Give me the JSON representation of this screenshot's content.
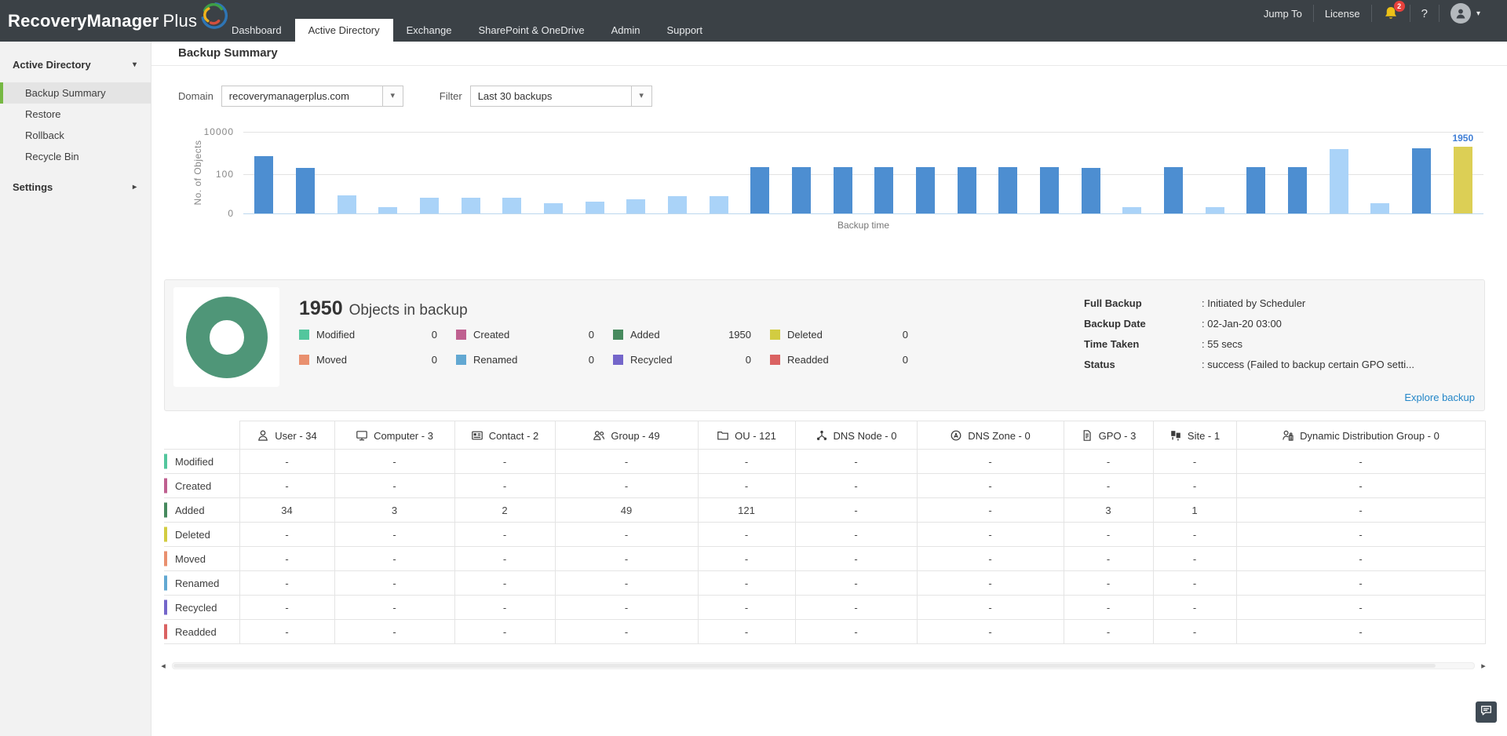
{
  "topbar": {
    "logo": {
      "text_primary": "RecoveryManager",
      "text_secondary": "Plus"
    },
    "tabs": [
      {
        "label": "Dashboard",
        "active": false
      },
      {
        "label": "Active Directory",
        "active": true
      },
      {
        "label": "Exchange",
        "active": false
      },
      {
        "label": "SharePoint & OneDrive",
        "active": false
      },
      {
        "label": "Admin",
        "active": false
      },
      {
        "label": "Support",
        "active": false
      }
    ],
    "right": {
      "jump_to": "Jump To",
      "license": "License",
      "notification_count": "2",
      "help": "?"
    }
  },
  "sidebar": {
    "section": {
      "label": "Active Directory"
    },
    "items": [
      {
        "label": "Backup Summary",
        "selected": true
      },
      {
        "label": "Restore",
        "selected": false
      },
      {
        "label": "Rollback",
        "selected": false
      },
      {
        "label": "Recycle Bin",
        "selected": false
      }
    ],
    "settings_label": "Settings"
  },
  "page": {
    "title": "Backup Summary"
  },
  "filters": {
    "domain_label": "Domain",
    "domain_value": "recoverymanagerplus.com",
    "filter_label": "Filter",
    "filter_value": "Last 30 backups"
  },
  "icons": {
    "caret_down": "▾",
    "caret_right": "▸",
    "select_caret": "▾",
    "scroll_left": "◂",
    "scroll_right": "▸",
    "avatar_caret": "▾"
  },
  "chart_data": {
    "type": "bar",
    "title": "",
    "xlabel": "Backup time",
    "ylabel": "No. of Objects",
    "yticks": [
      "10000",
      "100",
      "0"
    ],
    "scale": "linear 0-100 below first gridline, then logarithmic to 10000",
    "legend_position": "none",
    "grid": true,
    "colors": {
      "dark": "#4d8ed1",
      "light": "#aad3f8",
      "yellow": "#dccf55"
    },
    "bars": [
      {
        "v": 700,
        "c": "dark"
      },
      {
        "v": 200,
        "c": "dark"
      },
      {
        "v": 45,
        "c": "light"
      },
      {
        "v": 15,
        "c": "light"
      },
      {
        "v": 40,
        "c": "light"
      },
      {
        "v": 40,
        "c": "light"
      },
      {
        "v": 40,
        "c": "light"
      },
      {
        "v": 25,
        "c": "light"
      },
      {
        "v": 30,
        "c": "light"
      },
      {
        "v": 35,
        "c": "light"
      },
      {
        "v": 43,
        "c": "light"
      },
      {
        "v": 43,
        "c": "light"
      },
      {
        "v": 215,
        "c": "dark"
      },
      {
        "v": 215,
        "c": "dark"
      },
      {
        "v": 215,
        "c": "dark"
      },
      {
        "v": 215,
        "c": "dark"
      },
      {
        "v": 215,
        "c": "dark"
      },
      {
        "v": 215,
        "c": "dark"
      },
      {
        "v": 215,
        "c": "dark"
      },
      {
        "v": 215,
        "c": "dark"
      },
      {
        "v": 200,
        "c": "dark"
      },
      {
        "v": 15,
        "c": "light"
      },
      {
        "v": 215,
        "c": "dark"
      },
      {
        "v": 16,
        "c": "light"
      },
      {
        "v": 215,
        "c": "dark"
      },
      {
        "v": 210,
        "c": "dark"
      },
      {
        "v": 1500,
        "c": "light"
      },
      {
        "v": 25,
        "c": "light"
      },
      {
        "v": 1600,
        "c": "dark"
      },
      {
        "v": 1950,
        "c": "yellow",
        "label": "1950"
      }
    ]
  },
  "summary": {
    "total": "1950",
    "total_suffix": "Objects in backup",
    "donut_color": "#4f9678",
    "legend": [
      {
        "label": "Modified",
        "value": "0",
        "color": "#53c69d"
      },
      {
        "label": "Created",
        "value": "0",
        "color": "#bf6090"
      },
      {
        "label": "Added",
        "value": "1950",
        "color": "#478a5e"
      },
      {
        "label": "Deleted",
        "value": "0",
        "color": "#d2cc41"
      },
      {
        "label": "Moved",
        "value": "0",
        "color": "#e9906f"
      },
      {
        "label": "Renamed",
        "value": "0",
        "color": "#62a8d2"
      },
      {
        "label": "Recycled",
        "value": "0",
        "color": "#7466ca"
      },
      {
        "label": "Readded",
        "value": "0",
        "color": "#da6262"
      }
    ],
    "info": [
      {
        "label": "Full Backup",
        "value": ": Initiated by Scheduler"
      },
      {
        "label": "Backup Date",
        "value": ": 02-Jan-20 03:00"
      },
      {
        "label": "Time Taken",
        "value": ": 55 secs"
      },
      {
        "label": "Status",
        "value": ": success (Failed to backup certain GPO setti..."
      }
    ],
    "explore_link": "Explore backup"
  },
  "table": {
    "columns": [
      {
        "icon": "user-icon",
        "label": "User - 34"
      },
      {
        "icon": "computer-icon",
        "label": "Computer - 3"
      },
      {
        "icon": "contact-icon",
        "label": "Contact - 2"
      },
      {
        "icon": "group-icon",
        "label": "Group - 49"
      },
      {
        "icon": "ou-icon",
        "label": "OU - 121"
      },
      {
        "icon": "dns-node-icon",
        "label": "DNS Node - 0"
      },
      {
        "icon": "dns-zone-icon",
        "label": "DNS Zone - 0"
      },
      {
        "icon": "gpo-icon",
        "label": "GPO - 3"
      },
      {
        "icon": "site-icon",
        "label": "Site - 1"
      },
      {
        "icon": "ddg-icon",
        "label": "Dynamic Distribution Group - 0"
      }
    ],
    "rows": [
      {
        "label": "Modified",
        "color": "#53c69d",
        "cells": [
          "-",
          "-",
          "-",
          "-",
          "-",
          "-",
          "-",
          "-",
          "-",
          "-"
        ]
      },
      {
        "label": "Created",
        "color": "#bf6090",
        "cells": [
          "-",
          "-",
          "-",
          "-",
          "-",
          "-",
          "-",
          "-",
          "-",
          "-"
        ]
      },
      {
        "label": "Added",
        "color": "#478a5e",
        "cells": [
          "34",
          "3",
          "2",
          "49",
          "121",
          "-",
          "-",
          "3",
          "1",
          "-"
        ]
      },
      {
        "label": "Deleted",
        "color": "#d2cc41",
        "cells": [
          "-",
          "-",
          "-",
          "-",
          "-",
          "-",
          "-",
          "-",
          "-",
          "-"
        ]
      },
      {
        "label": "Moved",
        "color": "#e9906f",
        "cells": [
          "-",
          "-",
          "-",
          "-",
          "-",
          "-",
          "-",
          "-",
          "-",
          "-"
        ]
      },
      {
        "label": "Renamed",
        "color": "#62a8d2",
        "cells": [
          "-",
          "-",
          "-",
          "-",
          "-",
          "-",
          "-",
          "-",
          "-",
          "-"
        ]
      },
      {
        "label": "Recycled",
        "color": "#7466ca",
        "cells": [
          "-",
          "-",
          "-",
          "-",
          "-",
          "-",
          "-",
          "-",
          "-",
          "-"
        ]
      },
      {
        "label": "Readded",
        "color": "#da6262",
        "cells": [
          "-",
          "-",
          "-",
          "-",
          "-",
          "-",
          "-",
          "-",
          "-",
          "-"
        ]
      }
    ]
  }
}
